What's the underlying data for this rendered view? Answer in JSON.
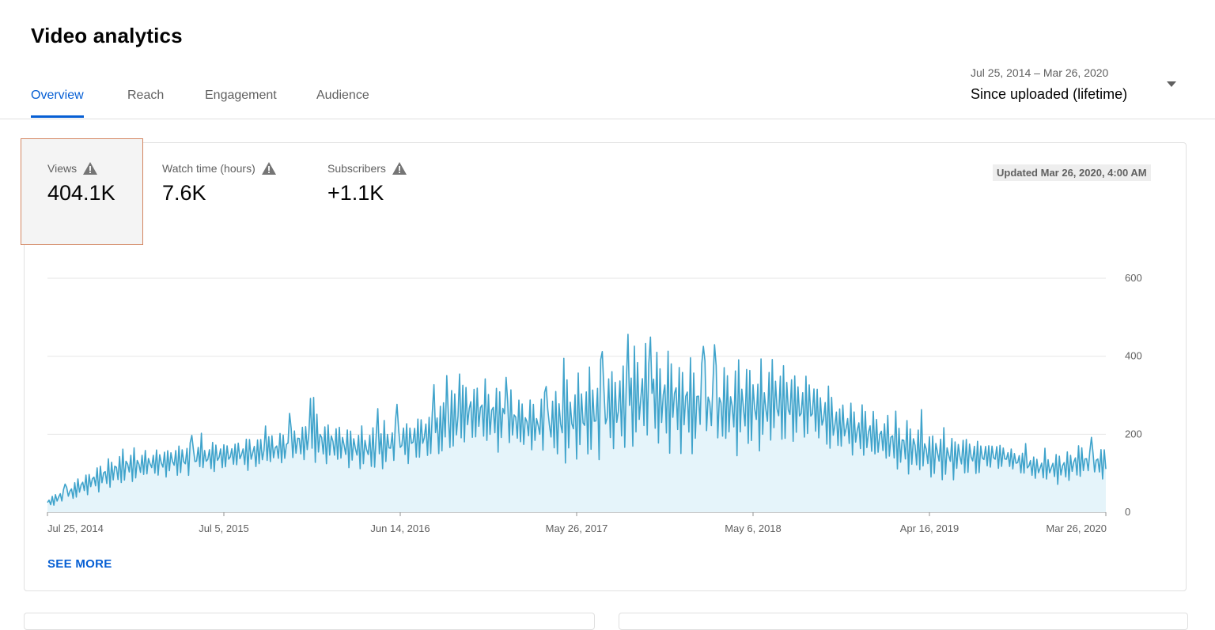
{
  "header": {
    "title": "Video analytics"
  },
  "tabs": [
    {
      "label": "Overview",
      "active": true
    },
    {
      "label": "Reach",
      "active": false
    },
    {
      "label": "Engagement",
      "active": false
    },
    {
      "label": "Audience",
      "active": false
    }
  ],
  "date_range": {
    "range_text": "Jul 25, 2014 – Mar 26, 2020",
    "selection": "Since uploaded (lifetime)"
  },
  "metrics": [
    {
      "label": "Views",
      "value": "404.1K",
      "selected": true,
      "icon": "warning-icon"
    },
    {
      "label": "Watch time (hours)",
      "value": "7.6K",
      "selected": false,
      "icon": "warning-icon"
    },
    {
      "label": "Subscribers",
      "value": "+1.1K",
      "selected": false,
      "icon": "warning-icon"
    }
  ],
  "updated_text": "Updated Mar 26, 2020, 4:00 AM",
  "see_more_label": "SEE MORE",
  "colors": {
    "accent": "#065fd4",
    "line": "#3fa3cb",
    "fill": "#e5f4fa",
    "highlight_border": "#d38560"
  },
  "chart_data": {
    "type": "area",
    "x_start": "Jul 25, 2014",
    "x_end": "Mar 26, 2020",
    "x_tick_labels": [
      "Jul 25, 2014",
      "Jul 5, 2015",
      "Jun 14, 2016",
      "May 26, 2017",
      "May 6, 2018",
      "Apr 16, 2019",
      "Mar 26, 2020"
    ],
    "y_ticks": [
      0,
      200,
      400,
      600
    ],
    "ylim": [
      0,
      600
    ],
    "grid": true,
    "y_axis_side": "right",
    "series": [
      {
        "sampling": "monthly, approximate daily views",
        "low": [
          10,
          18,
          25,
          35,
          45,
          55,
          60,
          70,
          75,
          80,
          85,
          90,
          90,
          95,
          95,
          100,
          100,
          105,
          105,
          110,
          115,
          115,
          120,
          120,
          115,
          110,
          105,
          100,
          100,
          105,
          110,
          115,
          120,
          125,
          130,
          140,
          150,
          150,
          150,
          150,
          150,
          145,
          140,
          130,
          120,
          115,
          110,
          115,
          120,
          130,
          140,
          150,
          155,
          150,
          145,
          140,
          135,
          130,
          130,
          130,
          135,
          140,
          150,
          160,
          170,
          165,
          160,
          150,
          140,
          135,
          130,
          120,
          110,
          100,
          90,
          80,
          80,
          80,
          80,
          85,
          90,
          100,
          110,
          100,
          90,
          80,
          75,
          70,
          70,
          80,
          80,
          85
        ],
        "high": [
          40,
          60,
          80,
          100,
          120,
          140,
          160,
          170,
          170,
          170,
          175,
          180,
          180,
          185,
          185,
          190,
          190,
          195,
          200,
          205,
          210,
          230,
          250,
          260,
          250,
          240,
          230,
          230,
          230,
          240,
          250,
          260,
          270,
          280,
          300,
          330,
          370,
          360,
          350,
          340,
          320,
          310,
          300,
          320,
          340,
          360,
          380,
          390,
          400,
          410,
          420,
          440,
          450,
          440,
          430,
          420,
          410,
          400,
          400,
          400,
          400,
          400,
          395,
          390,
          380,
          370,
          360,
          330,
          300,
          290,
          280,
          270,
          260,
          250,
          250,
          240,
          230,
          220,
          210,
          210,
          200,
          190,
          180,
          170,
          160,
          150,
          150,
          160,
          170,
          180,
          175,
          170
        ]
      }
    ]
  }
}
